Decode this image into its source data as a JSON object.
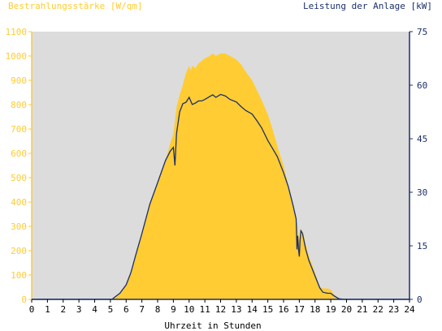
{
  "chart_data": {
    "type": "area",
    "left_axis_title": "Bestrahlungsstärke [W/qm]",
    "right_axis_title": "Leistung der Anlage [kW]",
    "xlabel": "Uhrzeit in Stunden",
    "xlim": [
      0,
      24
    ],
    "ylim_left": [
      0,
      1100
    ],
    "ylim_right": [
      0,
      75
    ],
    "x_ticks": [
      "0",
      "1",
      "2",
      "3",
      "4",
      "5",
      "6",
      "7",
      "8",
      "9",
      "10",
      "11",
      "12",
      "13",
      "14",
      "15",
      "16",
      "17",
      "18",
      "19",
      "20",
      "21",
      "22",
      "23",
      "24"
    ],
    "y_left_ticks": [
      "0",
      "100",
      "200",
      "300",
      "400",
      "500",
      "600",
      "700",
      "800",
      "900",
      "1000",
      "1100"
    ],
    "y_right_ticks": [
      "0",
      "15",
      "30",
      "45",
      "60",
      "75"
    ],
    "grid": false,
    "colors": {
      "plot_background": "#dcdcdc",
      "irradiance_fill": "#ffcc33",
      "power_line": "#1b2f6b",
      "left_axis": "#ffcc33",
      "right_axis": "#1b2f6b"
    },
    "series": [
      {
        "axis": "left",
        "style": "area",
        "x": [
          0,
          5.1,
          5.3,
          5.6,
          6.0,
          6.3,
          6.6,
          7.0,
          7.5,
          8.0,
          8.5,
          8.8,
          9.0,
          9.2,
          9.4,
          9.6,
          9.8,
          10.0,
          10.1,
          10.2,
          10.4,
          10.6,
          10.8,
          11.0,
          11.3,
          11.5,
          11.7,
          12.0,
          12.3,
          12.6,
          13.0,
          13.3,
          13.6,
          14.0,
          14.3,
          14.6,
          15.0,
          15.3,
          15.6,
          16.0,
          16.3,
          16.6,
          16.9,
          17.0,
          17.1,
          17.2,
          17.4,
          17.6,
          18.0,
          18.3,
          18.5,
          18.8,
          19.0,
          19.2,
          19.5,
          19.8,
          24
        ],
        "y": [
          0,
          0,
          10,
          25,
          60,
          110,
          180,
          270,
          390,
          480,
          570,
          640,
          680,
          790,
          840,
          880,
          930,
          960,
          940,
          960,
          950,
          970,
          980,
          990,
          1000,
          1010,
          1000,
          1010,
          1010,
          1000,
          985,
          965,
          935,
          900,
          860,
          820,
          760,
          700,
          630,
          550,
          470,
          380,
          300,
          240,
          290,
          280,
          230,
          180,
          110,
          50,
          45,
          45,
          40,
          20,
          5,
          0,
          0
        ]
      },
      {
        "axis": "right",
        "style": "line",
        "x": [
          0,
          5.1,
          5.3,
          5.6,
          6.0,
          6.3,
          6.6,
          7.0,
          7.5,
          8.0,
          8.5,
          8.8,
          9.0,
          9.05,
          9.1,
          9.2,
          9.4,
          9.6,
          9.8,
          10.0,
          10.2,
          10.4,
          10.6,
          10.8,
          11.0,
          11.3,
          11.5,
          11.7,
          12.0,
          12.3,
          12.6,
          13.0,
          13.3,
          13.6,
          14.0,
          14.3,
          14.6,
          15.0,
          15.3,
          15.6,
          16.0,
          16.3,
          16.6,
          16.8,
          16.85,
          16.9,
          16.95,
          17.0,
          17.05,
          17.1,
          17.2,
          17.4,
          17.6,
          18.0,
          18.3,
          18.5,
          18.8,
          19.0,
          19.2,
          19.5,
          19.8,
          24
        ],
        "y": [
          0,
          0,
          0.7,
          1.7,
          4.1,
          7.5,
          12.3,
          18.4,
          26.6,
          32.7,
          38.9,
          41.5,
          42.6,
          40.2,
          37.5,
          46.5,
          52.5,
          54.8,
          55.2,
          56.6,
          54.6,
          55.0,
          55.6,
          55.6,
          56.0,
          56.8,
          57.3,
          56.6,
          57.4,
          57.0,
          56.0,
          55.3,
          54.0,
          52.9,
          51.9,
          50.1,
          48.1,
          44.5,
          42.3,
          40.0,
          35.5,
          31.6,
          26.4,
          22.5,
          14.0,
          17.8,
          14.0,
          12.0,
          16.5,
          19.2,
          18.5,
          14.2,
          11.0,
          6.5,
          3.2,
          2.0,
          1.7,
          1.7,
          1.0,
          0.2,
          0,
          0
        ]
      }
    ]
  }
}
